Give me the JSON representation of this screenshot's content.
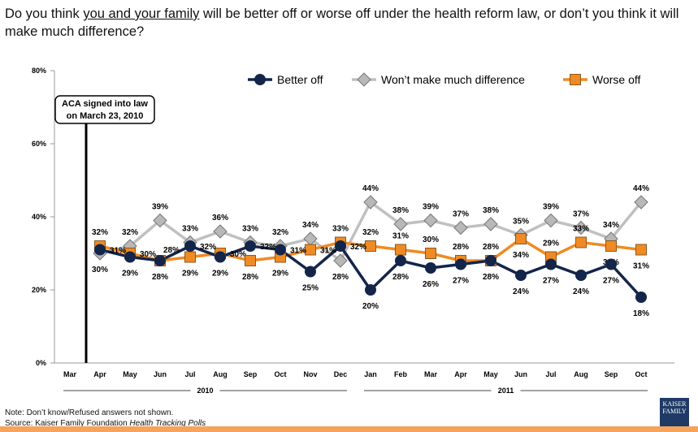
{
  "title": {
    "pre": "Do you think ",
    "underlined": "you and your family",
    "post": " will be better off or worse off under the health reform law, or don’t you think it will make much difference?"
  },
  "annotation": {
    "line1": "ACA signed into law",
    "line2": "on March 23, 2010"
  },
  "note": "Note: Don’t know/Refused answers not shown.",
  "source_prefix": "Source: Kaiser Family Foundation ",
  "source_italic": "Health Tracking Polls",
  "logo_text": "THE HENRY J. KAISER FAMILY FOUNDATION",
  "chart_data": {
    "type": "line",
    "categories": [
      "Mar",
      "Apr",
      "May",
      "Jun",
      "Jul",
      "Aug",
      "Sep",
      "Oct",
      "Nov",
      "Dec",
      "Jan",
      "Feb",
      "Mar",
      "Apr",
      "May",
      "Jun",
      "Jul",
      "Aug",
      "Sep",
      "Oct"
    ],
    "year_groups": [
      {
        "label": "2010",
        "from": 0,
        "to": 9
      },
      {
        "label": "2011",
        "from": 10,
        "to": 19
      }
    ],
    "yticks": [
      "0%",
      "20%",
      "40%",
      "60%",
      "80%"
    ],
    "ylim": [
      0,
      80
    ],
    "legend_position": "top-right",
    "series": [
      {
        "name": "Better off",
        "color": "#14254a",
        "marker": "circle",
        "values": [
          null,
          31,
          29,
          28,
          32,
          29,
          32,
          31,
          25,
          32,
          20,
          28,
          26,
          27,
          28,
          24,
          27,
          24,
          27,
          18
        ]
      },
      {
        "name": "Won’t make much difference",
        "color": "#c0c0c0",
        "marker": "diamond",
        "values": [
          null,
          30,
          32,
          39,
          33,
          36,
          33,
          32,
          34,
          28,
          44,
          38,
          39,
          37,
          38,
          35,
          39,
          37,
          34,
          44
        ]
      },
      {
        "name": "Worse off",
        "color": "#f08a24",
        "marker": "square",
        "values": [
          null,
          32,
          30,
          28,
          29,
          30,
          28,
          29,
          31,
          33,
          32,
          31,
          30,
          28,
          28,
          34,
          29,
          33,
          32,
          31
        ]
      }
    ]
  }
}
